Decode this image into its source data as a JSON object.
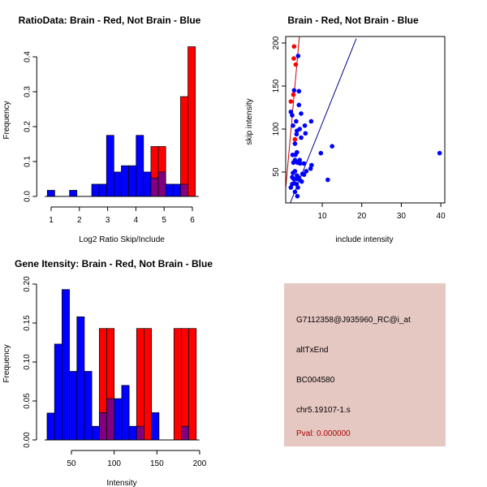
{
  "chart_data": [
    {
      "type": "bar",
      "title": "RatioData: Brain - Red, Not Brain - Blue",
      "xlabel": "Log2 Ratio Skip/Include",
      "ylabel": "Frequency",
      "bin_start": 0.865,
      "bin_width": 0.262,
      "xlim": [
        0.865,
        6.11
      ],
      "ylim": [
        0,
        0.43
      ],
      "xticks": [
        1,
        2,
        3,
        4,
        5,
        6
      ],
      "yticks": [
        "0.0",
        "0.1",
        "0.2",
        "0.3",
        "0.4"
      ],
      "series": [
        {
          "name": "Not Brain",
          "color": "#0000ff",
          "values": [
            0.0175,
            0,
            0,
            0.0175,
            0,
            0,
            0.035,
            0.035,
            0.175,
            0.07,
            0.088,
            0.088,
            0.175,
            0.07,
            0.053,
            0.07,
            0.035,
            0.035,
            0.035,
            0
          ]
        },
        {
          "name": "Brain",
          "color": "#ff0000",
          "values": [
            0,
            0,
            0,
            0,
            0,
            0,
            0,
            0,
            0,
            0,
            0,
            0,
            0,
            0,
            0.143,
            0.143,
            0,
            0,
            0.286,
            0.429
          ]
        }
      ]
    },
    {
      "type": "scatter",
      "title": "Brain - Red, Not Brain - Blue",
      "xlabel": "include intensity",
      "ylabel": "skip intensity",
      "xlim": [
        0.76,
        41
      ],
      "ylim": [
        14,
        207
      ],
      "xticks": [
        10,
        20,
        30,
        40
      ],
      "yticks": [
        50,
        100,
        150,
        200
      ],
      "lines": [
        {
          "color": "#cc0000",
          "points": [
            [
              0.8,
              33
            ],
            [
              4.2,
              207
            ]
          ]
        },
        {
          "color": "#00008b",
          "points": [
            [
              1.9,
              14
            ],
            [
              18.6,
              205
            ]
          ]
        }
      ],
      "series": [
        {
          "name": "Brain",
          "color": "#ff0000",
          "points": [
            [
              2.88,
              196
            ],
            [
              2.81,
              182
            ],
            [
              3.3,
              175
            ],
            [
              2.7,
              140
            ],
            [
              2.06,
              132
            ],
            [
              3.09,
              88
            ]
          ]
        },
        {
          "name": "Not Brain",
          "color": "#0000ff",
          "points": [
            [
              3.9,
              185
            ],
            [
              2.88,
              145
            ],
            [
              4.1,
              144
            ],
            [
              4.1,
              128
            ],
            [
              2.06,
              120
            ],
            [
              2.4,
              116
            ],
            [
              4.66,
              118
            ],
            [
              3.4,
              109
            ],
            [
              7.2,
              109
            ],
            [
              2.6,
              104
            ],
            [
              5.6,
              104
            ],
            [
              4.3,
              100
            ],
            [
              3.6,
              98
            ],
            [
              3.5,
              94
            ],
            [
              5.75,
              95
            ],
            [
              4.66,
              90
            ],
            [
              3.1,
              83
            ],
            [
              12.5,
              80
            ],
            [
              9.65,
              72
            ],
            [
              39.7,
              72
            ],
            [
              3.6,
              73
            ],
            [
              3.2,
              70
            ],
            [
              2.5,
              70
            ],
            [
              3.1,
              64
            ],
            [
              4.3,
              64
            ],
            [
              2.7,
              61
            ],
            [
              3.75,
              61
            ],
            [
              4.4,
              60
            ],
            [
              5.35,
              60
            ],
            [
              7.3,
              58
            ],
            [
              7.05,
              54
            ],
            [
              5.96,
              51
            ],
            [
              3.1,
              51
            ],
            [
              2.6,
              49
            ],
            [
              5.0,
              48
            ],
            [
              5.4,
              47
            ],
            [
              3.6,
              46
            ],
            [
              2.4,
              44
            ],
            [
              3.97,
              44
            ],
            [
              2.8,
              42
            ],
            [
              3.6,
              42
            ],
            [
              11.4,
              41
            ],
            [
              4.3,
              41
            ],
            [
              4.8,
              39
            ],
            [
              2.95,
              37
            ],
            [
              2.4,
              36
            ],
            [
              3.5,
              36
            ],
            [
              2.06,
              32
            ],
            [
              3.84,
              32
            ],
            [
              3.1,
              27
            ],
            [
              3.7,
              22
            ]
          ]
        }
      ]
    },
    {
      "type": "bar",
      "title": "Gene Itensity: Brain - Red, Not Brain - Blue",
      "xlabel": "Intensity",
      "ylabel": "Frequency",
      "bin_start": 21.5,
      "bin_width": 8.73,
      "xlim": [
        21.5,
        196
      ],
      "ylim": [
        0,
        0.2
      ],
      "xticks": [
        50,
        100,
        150,
        200
      ],
      "yticks": [
        "0.00",
        "0.05",
        "0.10",
        "0.15",
        "0.20"
      ],
      "series": [
        {
          "name": "Not Brain",
          "color": "#0000ff",
          "values": [
            0.0345,
            0.123,
            0.193,
            0.088,
            0.158,
            0.088,
            0.0175,
            0.035,
            0.053,
            0.053,
            0.07,
            0.0175,
            0.0175,
            0,
            0.035,
            0,
            0,
            0,
            0.0175,
            0
          ]
        },
        {
          "name": "Brain",
          "color": "#ff0000",
          "values": [
            0,
            0,
            0,
            0,
            0,
            0,
            0,
            0.143,
            0.143,
            0,
            0,
            0,
            0.143,
            0.143,
            0,
            0,
            0,
            0.143,
            0.143,
            0.143
          ]
        }
      ]
    }
  ],
  "info": {
    "probe": "G7112358@J935960_RC@i_at",
    "event": "altTxEnd",
    "accession": "BC004580",
    "locus": "chr5.19107-1.s",
    "pval": "Pval: 0.000000",
    "bg": "#e6c8c3",
    "pval_color": "#aa0000"
  }
}
